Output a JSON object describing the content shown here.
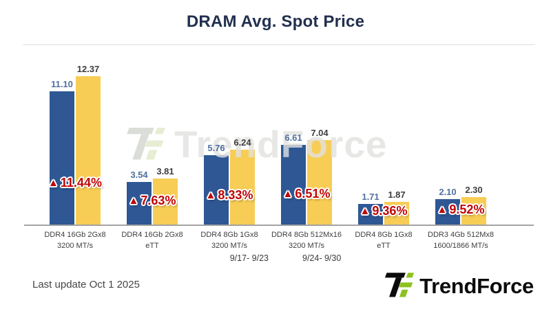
{
  "title": "DRAM Avg. Spot Price",
  "colors": {
    "bar_week1_blue": "#2e5794",
    "bar_week2_yellow": "#f7cd55",
    "change_red": "#c00505",
    "title_navy": "#22304f",
    "brand_green": "#8dc21f",
    "brand_black": "#0b0b0b"
  },
  "chart_data": {
    "type": "bar",
    "title": "DRAM Avg. Spot Price",
    "categories": [
      "DDR4 16Gb 2Gx8 3200 MT/s",
      "DDR4 16Gb 2Gx8 eTT",
      "DDR4 8Gb 1Gx8 3200 MT/s",
      "DDR4 8Gb 512Mx16 3200 MT/s",
      "DDR4 8Gb 1Gx8 eTT",
      "DDR3 4Gb 512Mx8 1600/1866 MT/s"
    ],
    "series": [
      {
        "name": "9/17- 9/23",
        "color": "#2e5794",
        "values": [
          11.1,
          3.54,
          5.76,
          6.61,
          1.71,
          2.1
        ],
        "labels": [
          "11.10",
          "3.54",
          "5.76",
          "6.61",
          "1.71",
          "2.10"
        ]
      },
      {
        "name": "9/24- 9/30",
        "color": "#f7cd55",
        "values": [
          12.37,
          3.81,
          6.24,
          7.04,
          1.87,
          2.3
        ],
        "labels": [
          "12.37",
          "3.81",
          "6.24",
          "7.04",
          "1.87",
          "2.30"
        ]
      }
    ],
    "change_pct": [
      "11.44%",
      "7.63%",
      "8.33%",
      "6.51%",
      "9.36%",
      "9.52%"
    ],
    "change_direction": "up",
    "change_icon": "up-triangle-icon",
    "ylim": [
      0,
      13
    ],
    "grid": false,
    "legend_position": "bottom",
    "watermark": "TrendForce"
  },
  "legend": {
    "items": [
      {
        "label": "9/17- 9/23",
        "color": "#2e5794"
      },
      {
        "label": "9/24- 9/30",
        "color": "#f7cd55"
      }
    ]
  },
  "watermark": {
    "text": "TrendForce"
  },
  "footer": {
    "last_update": "Last update Oct 1  2025",
    "brand": "TrendForce"
  }
}
